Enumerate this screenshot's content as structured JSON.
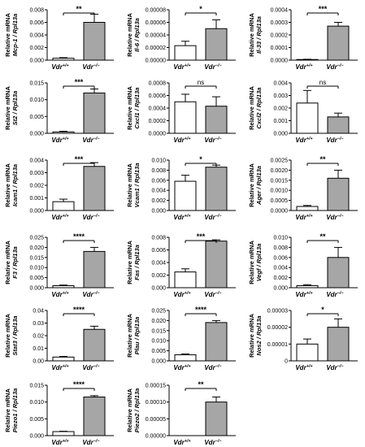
{
  "categories_display": [
    {
      "base": "Vdr",
      "sup": "+/+"
    },
    {
      "base": "Vdr",
      "sup": "−/−"
    }
  ],
  "bar_colors": [
    "#ffffff",
    "#a6a6a6"
  ],
  "chart_data": [
    {
      "type": "bar",
      "ylabel_prefix": "Relative mRNA",
      "ylabel_gene": "Mcp-1 / Rpl13a",
      "categories": [
        "Vdr+/+",
        "Vdr−/−"
      ],
      "values": [
        0.0003,
        0.006
      ],
      "errors": [
        0.0001,
        0.0013
      ],
      "ylim": [
        0,
        0.008
      ],
      "yticks": [
        "0.000",
        "0.002",
        "0.004",
        "0.006",
        "0.008"
      ],
      "significance": "**"
    },
    {
      "type": "bar",
      "ylabel_prefix": "Relative mRNA",
      "ylabel_gene": "Il-6 / Rpl13a",
      "categories": [
        "Vdr+/+",
        "Vdr−/−"
      ],
      "values": [
        2.3e-05,
        5e-05
      ],
      "errors": [
        7e-06,
        1.4e-05
      ],
      "ylim": [
        0,
        8e-05
      ],
      "yticks": [
        "0.00000",
        "0.00002",
        "0.00004",
        "0.00006",
        "0.00008"
      ],
      "significance": "*"
    },
    {
      "type": "bar",
      "ylabel_prefix": "Relative mRNA",
      "ylabel_gene": "Il-33 / Rpl13a",
      "categories": [
        "Vdr+/+",
        "Vdr−/−"
      ],
      "values": [
        5e-06,
        0.00027
      ],
      "errors": [
        2e-06,
        3e-05
      ],
      "ylim": [
        0,
        0.0004
      ],
      "yticks": [
        "0.0000",
        "0.0001",
        "0.0002",
        "0.0003",
        "0.0004"
      ],
      "significance": "***"
    },
    {
      "type": "bar",
      "ylabel_prefix": "Relative mRNA",
      "ylabel_gene": "St2 / Rpl13a",
      "categories": [
        "Vdr+/+",
        "Vdr−/−"
      ],
      "values": [
        0.0004,
        0.012
      ],
      "errors": [
        0.0002,
        0.0012
      ],
      "ylim": [
        0,
        0.015
      ],
      "yticks": [
        "0.000",
        "0.005",
        "0.010",
        "0.015"
      ],
      "significance": "***"
    },
    {
      "type": "bar",
      "ylabel_prefix": "Relative mRNA",
      "ylabel_gene": "Cxcl1 / Rpl13a",
      "categories": [
        "Vdr+/+",
        "Vdr−/−"
      ],
      "values": [
        0.0005,
        0.00043
      ],
      "errors": [
        0.00012,
        0.00015
      ],
      "ylim": [
        0,
        0.0008
      ],
      "yticks": [
        "0.0000",
        "0.0002",
        "0.0004",
        "0.0006",
        "0.0008"
      ],
      "significance": "ns"
    },
    {
      "type": "bar",
      "ylabel_prefix": "Relative mRNA",
      "ylabel_gene": "Cxcl2 / Rpl13a",
      "categories": [
        "Vdr+/+",
        "Vdr−/−"
      ],
      "values": [
        0.0024,
        0.0013
      ],
      "errors": [
        0.001,
        0.0003
      ],
      "ylim": [
        0,
        0.004
      ],
      "yticks": [
        "0.000",
        "0.001",
        "0.002",
        "0.003",
        "0.004"
      ],
      "significance": "ns"
    },
    {
      "type": "bar",
      "ylabel_prefix": "Relative mRNA",
      "ylabel_gene": "Icam1 / Rpl13a",
      "categories": [
        "Vdr+/+",
        "Vdr−/−"
      ],
      "values": [
        0.0007,
        0.0035
      ],
      "errors": [
        0.0002,
        0.0003
      ],
      "ylim": [
        0,
        0.004
      ],
      "yticks": [
        "0.000",
        "0.001",
        "0.002",
        "0.003",
        "0.004"
      ],
      "significance": "***"
    },
    {
      "type": "bar",
      "ylabel_prefix": "Relative mRNA",
      "ylabel_gene": "Vcam1 / Rpl13a",
      "categories": [
        "Vdr+/+",
        "Vdr−/−"
      ],
      "values": [
        0.0058,
        0.0086
      ],
      "errors": [
        0.0012,
        0.0004
      ],
      "ylim": [
        0,
        0.01
      ],
      "yticks": [
        "0.000",
        "0.002",
        "0.004",
        "0.006",
        "0.008",
        "0.010"
      ],
      "significance": "*"
    },
    {
      "type": "bar",
      "ylabel_prefix": "Relative mRNA",
      "ylabel_gene": "Ager / Rpl13a",
      "categories": [
        "Vdr+/+",
        "Vdr−/−"
      ],
      "values": [
        0.0002,
        0.0016
      ],
      "errors": [
        5e-05,
        0.0004
      ],
      "ylim": [
        0,
        0.0025
      ],
      "yticks": [
        "0.0000",
        "0.0005",
        "0.0010",
        "0.0015",
        "0.0020",
        "0.0025"
      ],
      "significance": "**"
    },
    {
      "type": "bar",
      "ylabel_prefix": "Relative mRNA",
      "ylabel_gene": "F3 / Rpl13a",
      "categories": [
        "Vdr+/+",
        "Vdr−/−"
      ],
      "values": [
        0.001,
        0.018
      ],
      "errors": [
        0.0003,
        0.002
      ],
      "ylim": [
        0,
        0.025
      ],
      "yticks": [
        "0.000",
        "0.005",
        "0.010",
        "0.015",
        "0.020",
        "0.025"
      ],
      "significance": "****"
    },
    {
      "type": "bar",
      "ylabel_prefix": "Relative mRNA",
      "ylabel_gene": "Fas / Rpl13a",
      "categories": [
        "Vdr+/+",
        "Vdr−/−"
      ],
      "values": [
        0.0025,
        0.0074
      ],
      "errors": [
        0.0005,
        0.0002
      ],
      "ylim": [
        0,
        0.008
      ],
      "yticks": [
        "0.000",
        "0.002",
        "0.004",
        "0.006",
        "0.008"
      ],
      "significance": "***"
    },
    {
      "type": "bar",
      "ylabel_prefix": "Relative mRNA",
      "ylabel_gene": "Vegf / Rpl13a",
      "categories": [
        "Vdr+/+",
        "Vdr−/−"
      ],
      "values": [
        0.0004,
        0.006
      ],
      "errors": [
        0.0002,
        0.002
      ],
      "ylim": [
        0,
        0.01
      ],
      "yticks": [
        "0.000",
        "0.002",
        "0.004",
        "0.006",
        "0.008",
        "0.010"
      ],
      "significance": "**"
    },
    {
      "type": "bar",
      "ylabel_prefix": "Relative mRNA",
      "ylabel_gene": "Stat3 / Rpl13a",
      "categories": [
        "Vdr+/+",
        "Vdr−/−"
      ],
      "values": [
        0.003,
        0.025
      ],
      "errors": [
        0.0005,
        0.0025
      ],
      "ylim": [
        0,
        0.04
      ],
      "yticks": [
        "0.00",
        "0.01",
        "0.02",
        "0.03",
        "0.04"
      ],
      "significance": "****"
    },
    {
      "type": "bar",
      "ylabel_prefix": "Relative mRNA",
      "ylabel_gene": "Plau / Rpl13a",
      "categories": [
        "Vdr+/+",
        "Vdr−/−"
      ],
      "values": [
        0.003,
        0.019
      ],
      "errors": [
        0.0004,
        0.001
      ],
      "ylim": [
        0,
        0.025
      ],
      "yticks": [
        "0.000",
        "0.005",
        "0.010",
        "0.015",
        "0.020",
        "0.025"
      ],
      "significance": "****"
    },
    {
      "type": "bar",
      "ylabel_prefix": "Relative mRNA",
      "ylabel_gene": "Nos2 / Rpl13a",
      "categories": [
        "Vdr+/+",
        "Vdr−/−"
      ],
      "values": [
        1e-05,
        2e-05
      ],
      "errors": [
        3e-06,
        5e-06
      ],
      "ylim": [
        0,
        3e-05
      ],
      "yticks": [
        "0",
        "0.00001",
        "0.00002",
        "0.00003"
      ],
      "significance": "*"
    },
    {
      "type": "bar",
      "ylabel_prefix": "Relative mRNA",
      "ylabel_gene": "Piezo1 / Rpl13a",
      "categories": [
        "Vdr+/+",
        "Vdr−/−"
      ],
      "values": [
        0.0012,
        0.0115
      ],
      "errors": [
        0.0001,
        0.0004
      ],
      "ylim": [
        0,
        0.015
      ],
      "yticks": [
        "0.000",
        "0.005",
        "0.010",
        "0.015"
      ],
      "significance": "****"
    },
    {
      "type": "bar",
      "ylabel_prefix": "Relative mRNA",
      "ylabel_gene": "Piezo2 / Rpl13a",
      "categories": [
        "Vdr+/+",
        "Vdr−/−"
      ],
      "values": [
        0,
        0.0001
      ],
      "errors": [
        0,
        1.5e-05
      ],
      "ylim": [
        0,
        0.00015
      ],
      "yticks": [
        "0.00000",
        "0.00005",
        "0.00010",
        "0.00015"
      ],
      "significance": "**"
    }
  ]
}
